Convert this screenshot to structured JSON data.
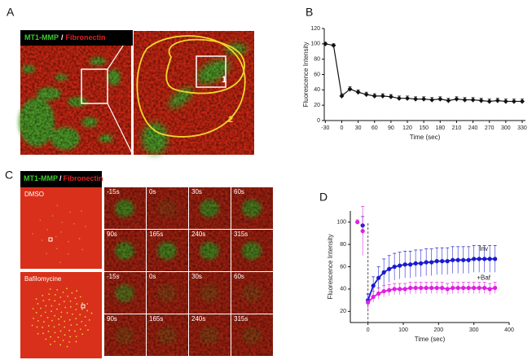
{
  "panel_a": {
    "label": "A",
    "caption": [
      "MT1-MMP",
      "/",
      "Fibronectin"
    ],
    "regions": [
      "1",
      "2"
    ]
  },
  "panel_c": {
    "label": "C",
    "caption": [
      "MT1-MMP",
      "/",
      "Fibronectin"
    ],
    "conditions": [
      {
        "name": "DMSO",
        "times": [
          "-15s",
          "0s",
          "30s",
          "60s",
          "90s",
          "165s",
          "240s",
          "315s"
        ]
      },
      {
        "name": "Bafilomycine",
        "times": [
          "-15s",
          "0s",
          "30s",
          "60s",
          "90s",
          "165s",
          "240s",
          "315s"
        ]
      }
    ]
  },
  "chart_data": [
    {
      "type": "line",
      "panel": "B",
      "xlabel": "Time (sec)",
      "ylabel": "Fluorescence Intensity",
      "x": [
        -30,
        -15,
        0,
        15,
        30,
        45,
        60,
        75,
        90,
        105,
        120,
        135,
        150,
        165,
        180,
        195,
        210,
        225,
        240,
        255,
        270,
        285,
        300,
        315,
        330
      ],
      "series": [
        {
          "name": null,
          "color": "#111111",
          "marker": "diamond",
          "values": [
            100,
            98,
            32,
            41,
            37,
            34,
            32,
            32,
            31,
            29,
            29,
            28,
            28,
            27,
            28,
            26,
            28,
            27,
            27,
            26,
            25,
            26,
            25,
            25,
            25
          ],
          "errors": [
            2,
            2,
            3,
            3,
            3,
            3,
            3,
            3,
            3,
            3,
            3,
            3,
            3,
            3,
            3,
            3,
            3,
            3,
            3,
            3,
            3,
            3,
            3,
            3,
            3
          ]
        }
      ],
      "xlim": [
        -32,
        336
      ],
      "xticks": [
        -30,
        0,
        30,
        60,
        90,
        120,
        150,
        180,
        210,
        240,
        270,
        300,
        330
      ],
      "ylim": [
        0,
        120
      ],
      "yticks": [
        0,
        20,
        40,
        60,
        80,
        100,
        120
      ]
    },
    {
      "type": "line",
      "panel": "D",
      "xlabel": "Time (sec)",
      "ylabel": "Fluorescence Intensity",
      "x": [
        -30,
        -15,
        0,
        15,
        30,
        45,
        60,
        75,
        90,
        105,
        120,
        135,
        150,
        165,
        180,
        195,
        210,
        225,
        240,
        255,
        270,
        285,
        300,
        315,
        330,
        345,
        360
      ],
      "vline": 0,
      "series": [
        {
          "name": "Inv",
          "color": "#1a1ad0",
          "marker": "circle",
          "values": [
            null,
            97,
            30,
            43,
            50,
            55,
            58,
            60,
            61,
            62,
            62,
            63,
            63,
            64,
            64,
            65,
            65,
            65,
            66,
            66,
            66,
            66,
            67,
            67,
            67,
            67,
            67
          ],
          "errors": [
            null,
            8,
            5,
            8,
            10,
            12,
            12,
            12,
            12,
            12,
            12,
            12,
            12,
            12,
            12,
            12,
            12,
            12,
            12,
            12,
            12,
            12,
            12,
            12,
            12,
            12,
            12
          ]
        },
        {
          "name": "+Baf",
          "color": "#e020e0",
          "marker": "circle",
          "values": [
            100,
            92,
            28,
            33,
            36,
            38,
            39,
            40,
            40,
            40,
            41,
            41,
            41,
            41,
            41,
            41,
            41,
            40,
            41,
            41,
            41,
            41,
            41,
            41,
            41,
            40,
            41
          ],
          "errors": [
            2,
            22,
            8,
            5,
            5,
            5,
            5,
            5,
            5,
            5,
            5,
            5,
            5,
            5,
            5,
            5,
            5,
            5,
            5,
            5,
            5,
            5,
            5,
            5,
            5,
            5,
            5
          ]
        }
      ],
      "xlim": [
        -50,
        400
      ],
      "xticks": [
        0,
        100,
        200,
        300,
        400
      ],
      "ylim": [
        10,
        110
      ],
      "yticks": [
        20,
        40,
        60,
        80,
        100
      ]
    }
  ]
}
